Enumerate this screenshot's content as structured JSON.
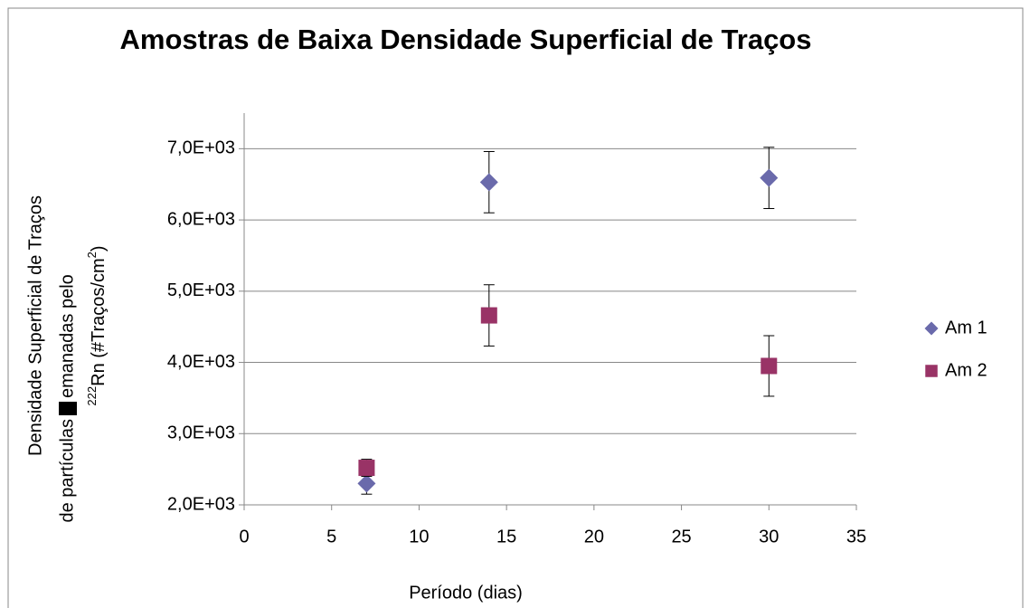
{
  "chart_data": {
    "type": "scatter",
    "title": "Amostras de Baixa Densidade Superficial de Traços",
    "x_label": "Período (dias)",
    "y_label": {
      "line1": "Densidade Superficial de Traços",
      "line2a": "de partículas",
      "line2b": "emanadas pelo",
      "line3": [
        "222",
        "Rn (#Traços/cm",
        "2",
        ")"
      ]
    },
    "x": [
      7,
      14,
      30
    ],
    "series": [
      {
        "name": "Am 1",
        "color": "#6a6aab",
        "marker": "diamond",
        "values": [
          2300,
          6530,
          6590
        ],
        "errors": [
          150,
          430,
          430
        ]
      },
      {
        "name": "Am 2",
        "color": "#993366",
        "marker": "square",
        "values": [
          2520,
          4660,
          3950
        ],
        "errors": [
          120,
          430,
          425
        ]
      }
    ],
    "xlim": [
      0,
      35
    ],
    "xticks": [
      0,
      5,
      10,
      15,
      20,
      25,
      30,
      35
    ],
    "ylim": [
      2000,
      7500
    ],
    "yticks": [
      {
        "value": 2000,
        "label": "2,0E+03"
      },
      {
        "value": 3000,
        "label": "3,0E+03"
      },
      {
        "value": 4000,
        "label": "4,0E+03"
      },
      {
        "value": 5000,
        "label": "5,0E+03"
      },
      {
        "value": 6000,
        "label": "6,0E+03"
      },
      {
        "value": 7000,
        "label": "7,0E+03"
      }
    ],
    "grid": true,
    "legend": "right"
  }
}
